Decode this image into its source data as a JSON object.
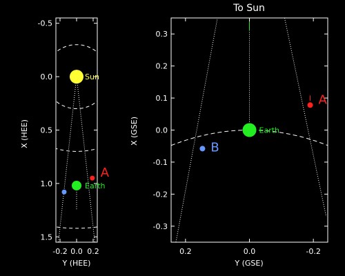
{
  "chart_data": [
    {
      "type": "scatter",
      "panel": "left",
      "title": "",
      "xlabel": "Y (HEE)",
      "ylabel": "X (HEE)",
      "xlim": [
        -0.25,
        0.25
      ],
      "ylim": [
        1.55,
        -0.55
      ],
      "x_reversed": false,
      "y_reversed": true,
      "xticks": [
        {
          "v": -0.2,
          "label": "-0.2"
        },
        {
          "v": 0.0,
          "label": "0.0"
        },
        {
          "v": 0.2,
          "label": "0.2"
        }
      ],
      "yticks": [
        {
          "v": -0.5,
          "label": "-0.5"
        },
        {
          "v": 0.0,
          "label": "0.0"
        },
        {
          "v": 0.5,
          "label": "0.5"
        },
        {
          "v": 1.0,
          "label": "1.0"
        },
        {
          "v": 1.5,
          "label": "1.5"
        }
      ],
      "arcs": [
        0.3,
        0.7,
        1.42
      ],
      "cone": {
        "apex": [
          0.0,
          0.0
        ],
        "ends": [
          [
            -0.22,
            1.55
          ],
          [
            0.22,
            1.55
          ]
        ]
      },
      "points": [
        {
          "name": "Sun",
          "label": "Sun",
          "x": 0.0,
          "y": 0.0,
          "r": 10,
          "color": "#ffff33",
          "label_color": "#ffff33",
          "dx": 12,
          "dy": 4,
          "size": 11
        },
        {
          "name": "Earth",
          "label": "Earth",
          "x": 0.0,
          "y": 1.02,
          "r": 7,
          "color": "#22ee22",
          "label_color": "#22ee22",
          "dx": 12,
          "dy": 4,
          "size": 11
        },
        {
          "name": "A",
          "label": "A",
          "x": 0.19,
          "y": 0.95,
          "r": 3.5,
          "color": "#ff2020",
          "label_color": "#ff2020",
          "dx": 12,
          "dy": -2,
          "size": 18
        },
        {
          "name": "B",
          "label": "",
          "x": -0.15,
          "y": 1.08,
          "r": 3.5,
          "color": "#6699ff",
          "label_color": "#6699ff",
          "dx": 0,
          "dy": 0,
          "size": 11
        }
      ]
    },
    {
      "type": "scatter",
      "panel": "right",
      "title": "To Sun",
      "xlabel": "Y (GSE)",
      "ylabel": "X (GSE)",
      "xlim": [
        0.245,
        -0.245
      ],
      "ylim": [
        -0.35,
        0.35
      ],
      "x_reversed": true,
      "y_reversed": false,
      "xticks": [
        {
          "v": 0.2,
          "label": "0.2"
        },
        {
          "v": 0.0,
          "label": "0.0"
        },
        {
          "v": -0.2,
          "label": "-0.2"
        }
      ],
      "yticks": [
        {
          "v": 0.3,
          "label": "0.3"
        },
        {
          "v": 0.2,
          "label": "0.2"
        },
        {
          "v": 0.1,
          "label": "0.1"
        },
        {
          "v": 0.0,
          "label": "0.0"
        },
        {
          "v": -0.1,
          "label": "-0.1"
        },
        {
          "v": -0.2,
          "label": "-0.2"
        },
        {
          "v": -0.3,
          "label": "-0.3"
        }
      ],
      "orbit_arc": true,
      "points": [
        {
          "name": "Earth",
          "label": "Earth",
          "x": 0.0,
          "y": 0.0,
          "r": 10,
          "color": "#22ee22",
          "label_color": "#22ee22",
          "dx": 14,
          "dy": 4,
          "size": 11
        },
        {
          "name": "A",
          "label": "A",
          "x": -0.19,
          "y": 0.078,
          "r": 4,
          "color": "#ff2020",
          "label_color": "#ff2020",
          "dx": 12,
          "dy": -2,
          "size": 18
        },
        {
          "name": "B",
          "label": "B",
          "x": 0.147,
          "y": -0.058,
          "r": 4,
          "color": "#6699ff",
          "label_color": "#6699ff",
          "dx": 12,
          "dy": 4,
          "size": 18
        }
      ]
    }
  ]
}
